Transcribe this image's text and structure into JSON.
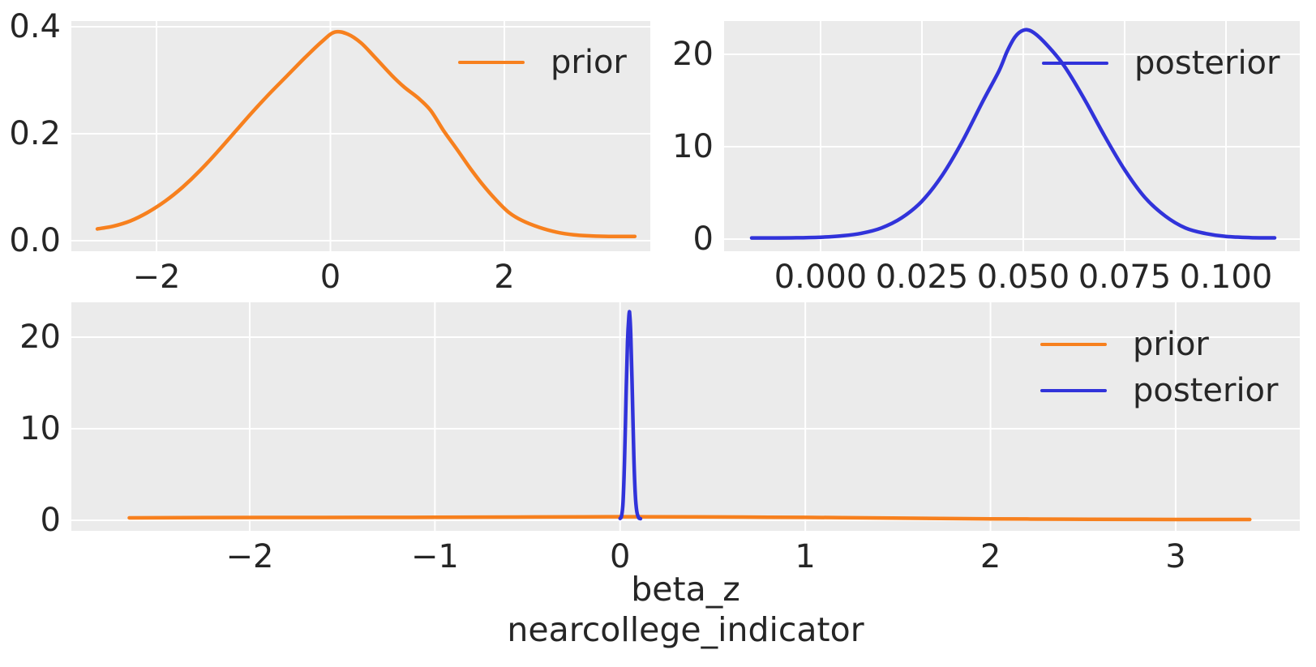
{
  "figure": {
    "background": "#ffffff",
    "axes_background": "#ebebeb",
    "grid_color": "#ffffff",
    "text_color": "#262626"
  },
  "colors": {
    "prior": "#f7801e",
    "posterior": "#3133da"
  },
  "chart_data": [
    {
      "type": "line",
      "position": "top-left",
      "title": "",
      "xlabel": "",
      "ylabel": "",
      "xlim": [
        -2.979,
        3.678
      ],
      "ylim": [
        -0.0197,
        0.4106
      ],
      "grid": true,
      "xticks": [
        {
          "value": -2,
          "label": "−2"
        },
        {
          "value": 0,
          "label": "0"
        },
        {
          "value": 2,
          "label": "2"
        }
      ],
      "yticks": [
        {
          "value": 0.0,
          "label": "0.0"
        },
        {
          "value": 0.2,
          "label": "0.2"
        },
        {
          "value": 0.4,
          "label": "0.4"
        }
      ],
      "legend": {
        "visible": true,
        "location": "upper right",
        "entries": [
          {
            "series": "prior",
            "label": "prior"
          }
        ]
      },
      "series": [
        {
          "name": "prior",
          "color_key": "prior",
          "points": [
            [
              -2.68,
              0.022
            ],
            [
              -2.5,
              0.027
            ],
            [
              -2.3,
              0.037
            ],
            [
              -2.1,
              0.053
            ],
            [
              -1.9,
              0.074
            ],
            [
              -1.7,
              0.1
            ],
            [
              -1.5,
              0.131
            ],
            [
              -1.3,
              0.166
            ],
            [
              -1.1,
              0.203
            ],
            [
              -0.9,
              0.24
            ],
            [
              -0.7,
              0.275
            ],
            [
              -0.5,
              0.308
            ],
            [
              -0.3,
              0.341
            ],
            [
              -0.1,
              0.372
            ],
            [
              0.05,
              0.39
            ],
            [
              0.2,
              0.386
            ],
            [
              0.35,
              0.37
            ],
            [
              0.5,
              0.345
            ],
            [
              0.7,
              0.31
            ],
            [
              0.85,
              0.287
            ],
            [
              1.0,
              0.268
            ],
            [
              1.15,
              0.244
            ],
            [
              1.3,
              0.206
            ],
            [
              1.45,
              0.172
            ],
            [
              1.6,
              0.137
            ],
            [
              1.75,
              0.105
            ],
            [
              1.9,
              0.077
            ],
            [
              2.05,
              0.053
            ],
            [
              2.2,
              0.038
            ],
            [
              2.4,
              0.025
            ],
            [
              2.6,
              0.016
            ],
            [
              2.8,
              0.011
            ],
            [
              3.0,
              0.009
            ],
            [
              3.2,
              0.008
            ],
            [
              3.5,
              0.008
            ]
          ]
        }
      ]
    },
    {
      "type": "line",
      "position": "top-right",
      "title": "",
      "xlabel": "",
      "ylabel": "",
      "xlim": [
        -0.0238,
        0.1182
      ],
      "ylim": [
        -1.316,
        23.6
      ],
      "grid": true,
      "xticks": [
        {
          "value": 0.0,
          "label": "0.000"
        },
        {
          "value": 0.025,
          "label": "0.025"
        },
        {
          "value": 0.05,
          "label": "0.050"
        },
        {
          "value": 0.075,
          "label": "0.075"
        },
        {
          "value": 0.1,
          "label": "0.100"
        }
      ],
      "yticks": [
        {
          "value": 0,
          "label": "0"
        },
        {
          "value": 10,
          "label": "10"
        },
        {
          "value": 20,
          "label": "20"
        }
      ],
      "legend": {
        "visible": true,
        "location": "upper right",
        "entries": [
          {
            "series": "posterior",
            "label": "posterior"
          }
        ]
      },
      "series": [
        {
          "name": "posterior",
          "color_key": "posterior",
          "points": [
            [
              -0.017,
              0.12
            ],
            [
              -0.012,
              0.12
            ],
            [
              -0.006,
              0.14
            ],
            [
              0.0,
              0.2
            ],
            [
              0.005,
              0.34
            ],
            [
              0.01,
              0.62
            ],
            [
              0.015,
              1.2
            ],
            [
              0.02,
              2.3
            ],
            [
              0.025,
              4.1
            ],
            [
              0.03,
              6.9
            ],
            [
              0.035,
              10.6
            ],
            [
              0.04,
              14.9
            ],
            [
              0.044,
              18.2
            ],
            [
              0.046,
              20.3
            ],
            [
              0.048,
              21.9
            ],
            [
              0.05,
              22.6
            ],
            [
              0.052,
              22.5
            ],
            [
              0.055,
              21.4
            ],
            [
              0.06,
              18.8
            ],
            [
              0.065,
              15.2
            ],
            [
              0.07,
              11.2
            ],
            [
              0.075,
              7.5
            ],
            [
              0.08,
              4.5
            ],
            [
              0.085,
              2.5
            ],
            [
              0.09,
              1.2
            ],
            [
              0.095,
              0.6
            ],
            [
              0.1,
              0.28
            ],
            [
              0.106,
              0.16
            ],
            [
              0.112,
              0.13
            ]
          ]
        }
      ]
    },
    {
      "type": "line",
      "position": "bottom",
      "title": "",
      "xlabel": "beta_z\nnearcollege_indicator",
      "xlabel_lines": [
        "beta_z",
        "nearcollege_indicator"
      ],
      "ylabel": "",
      "xlim": [
        -2.963,
        3.67
      ],
      "ylim": [
        -1.151,
        23.81
      ],
      "grid": true,
      "xticks": [
        {
          "value": -2,
          "label": "−2"
        },
        {
          "value": -1,
          "label": "−1"
        },
        {
          "value": 0,
          "label": "0"
        },
        {
          "value": 1,
          "label": "1"
        },
        {
          "value": 2,
          "label": "2"
        },
        {
          "value": 3,
          "label": "3"
        }
      ],
      "yticks": [
        {
          "value": 0,
          "label": "0"
        },
        {
          "value": 10,
          "label": "10"
        },
        {
          "value": 20,
          "label": "20"
        }
      ],
      "legend": {
        "visible": true,
        "location": "upper right",
        "entries": [
          {
            "series": "prior",
            "label": "prior"
          },
          {
            "series": "posterior",
            "label": "posterior"
          }
        ]
      },
      "series": [
        {
          "name": "prior",
          "color_key": "prior",
          "points": [
            [
              -2.65,
              0.27
            ],
            [
              -2.2,
              0.3
            ],
            [
              -1.8,
              0.31
            ],
            [
              -1.4,
              0.32
            ],
            [
              -1.0,
              0.33
            ],
            [
              -0.6,
              0.35
            ],
            [
              -0.2,
              0.38
            ],
            [
              0.05,
              0.39
            ],
            [
              0.4,
              0.37
            ],
            [
              0.8,
              0.34
            ],
            [
              1.2,
              0.29
            ],
            [
              1.6,
              0.22
            ],
            [
              2.0,
              0.16
            ],
            [
              2.4,
              0.12
            ],
            [
              2.8,
              0.1
            ],
            [
              3.1,
              0.09
            ],
            [
              3.4,
              0.09
            ]
          ]
        },
        {
          "name": "posterior",
          "color_key": "posterior",
          "points": [
            [
              0.0,
              0.2
            ],
            [
              0.008,
              0.5
            ],
            [
              0.016,
              2.0
            ],
            [
              0.024,
              6.5
            ],
            [
              0.032,
              13.5
            ],
            [
              0.04,
              19.5
            ],
            [
              0.048,
              22.4
            ],
            [
              0.052,
              22.5
            ],
            [
              0.058,
              20.0
            ],
            [
              0.066,
              14.0
            ],
            [
              0.074,
              7.0
            ],
            [
              0.082,
              2.8
            ],
            [
              0.09,
              1.0
            ],
            [
              0.1,
              0.3
            ],
            [
              0.11,
              0.18
            ]
          ]
        }
      ]
    }
  ]
}
